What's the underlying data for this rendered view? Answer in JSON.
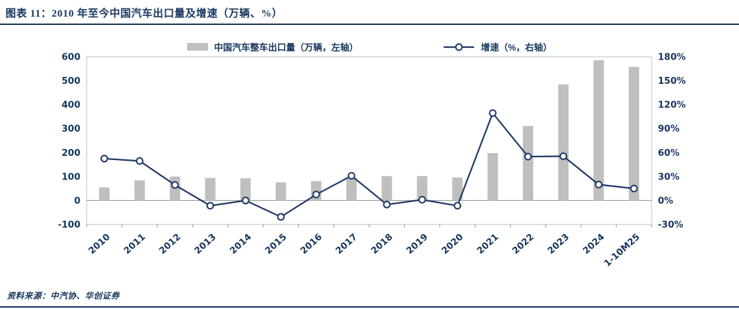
{
  "header": {
    "title": "图表 11：2010 年至今中国汽车出口量及增速（万辆、%）"
  },
  "footer": {
    "source": "资料来源：中汽协、华创证券"
  },
  "colors": {
    "navy": "#17365D",
    "line": "#1F3864",
    "bar": "#BFBFBF",
    "plot_border": "#BFBFBF",
    "axis_line": "#8C8C8C"
  },
  "chart_data": {
    "type": "bar",
    "subtype": "bar+line dual-axis combo",
    "title": "2010 年至今中国汽车出口量及增速（万辆、%）",
    "categories": [
      "2010",
      "2011",
      "2012",
      "2013",
      "2014",
      "2015",
      "2016",
      "2017",
      "2018",
      "2019",
      "2020",
      "2021",
      "2022",
      "2023",
      "2024",
      "1-10M25"
    ],
    "series": [
      {
        "name": "中国汽车整车出口量（万辆，左轴）",
        "type": "bar",
        "axis": "left",
        "values": [
          55,
          84,
          100,
          94,
          93,
          76,
          81,
          90,
          102,
          102,
          96,
          198,
          311,
          485,
          586,
          558
        ]
      },
      {
        "name": "增速（%，右轴）",
        "type": "line",
        "axis": "right",
        "values": [
          52.5,
          49.5,
          19.5,
          -6.5,
          0,
          -20.5,
          7.5,
          31,
          -5,
          1,
          -6.5,
          109.5,
          55,
          55.5,
          20,
          15
        ]
      }
    ],
    "left_axis": {
      "min": -100,
      "max": 600,
      "ticks": [
        600,
        500,
        400,
        300,
        200,
        100,
        0,
        -100
      ],
      "label_suffix": ""
    },
    "right_axis": {
      "min": -30,
      "max": 180,
      "ticks": [
        180,
        150,
        120,
        90,
        60,
        30,
        0,
        -30
      ],
      "label_suffix": "%"
    },
    "legend_position": "top",
    "grid": false
  }
}
